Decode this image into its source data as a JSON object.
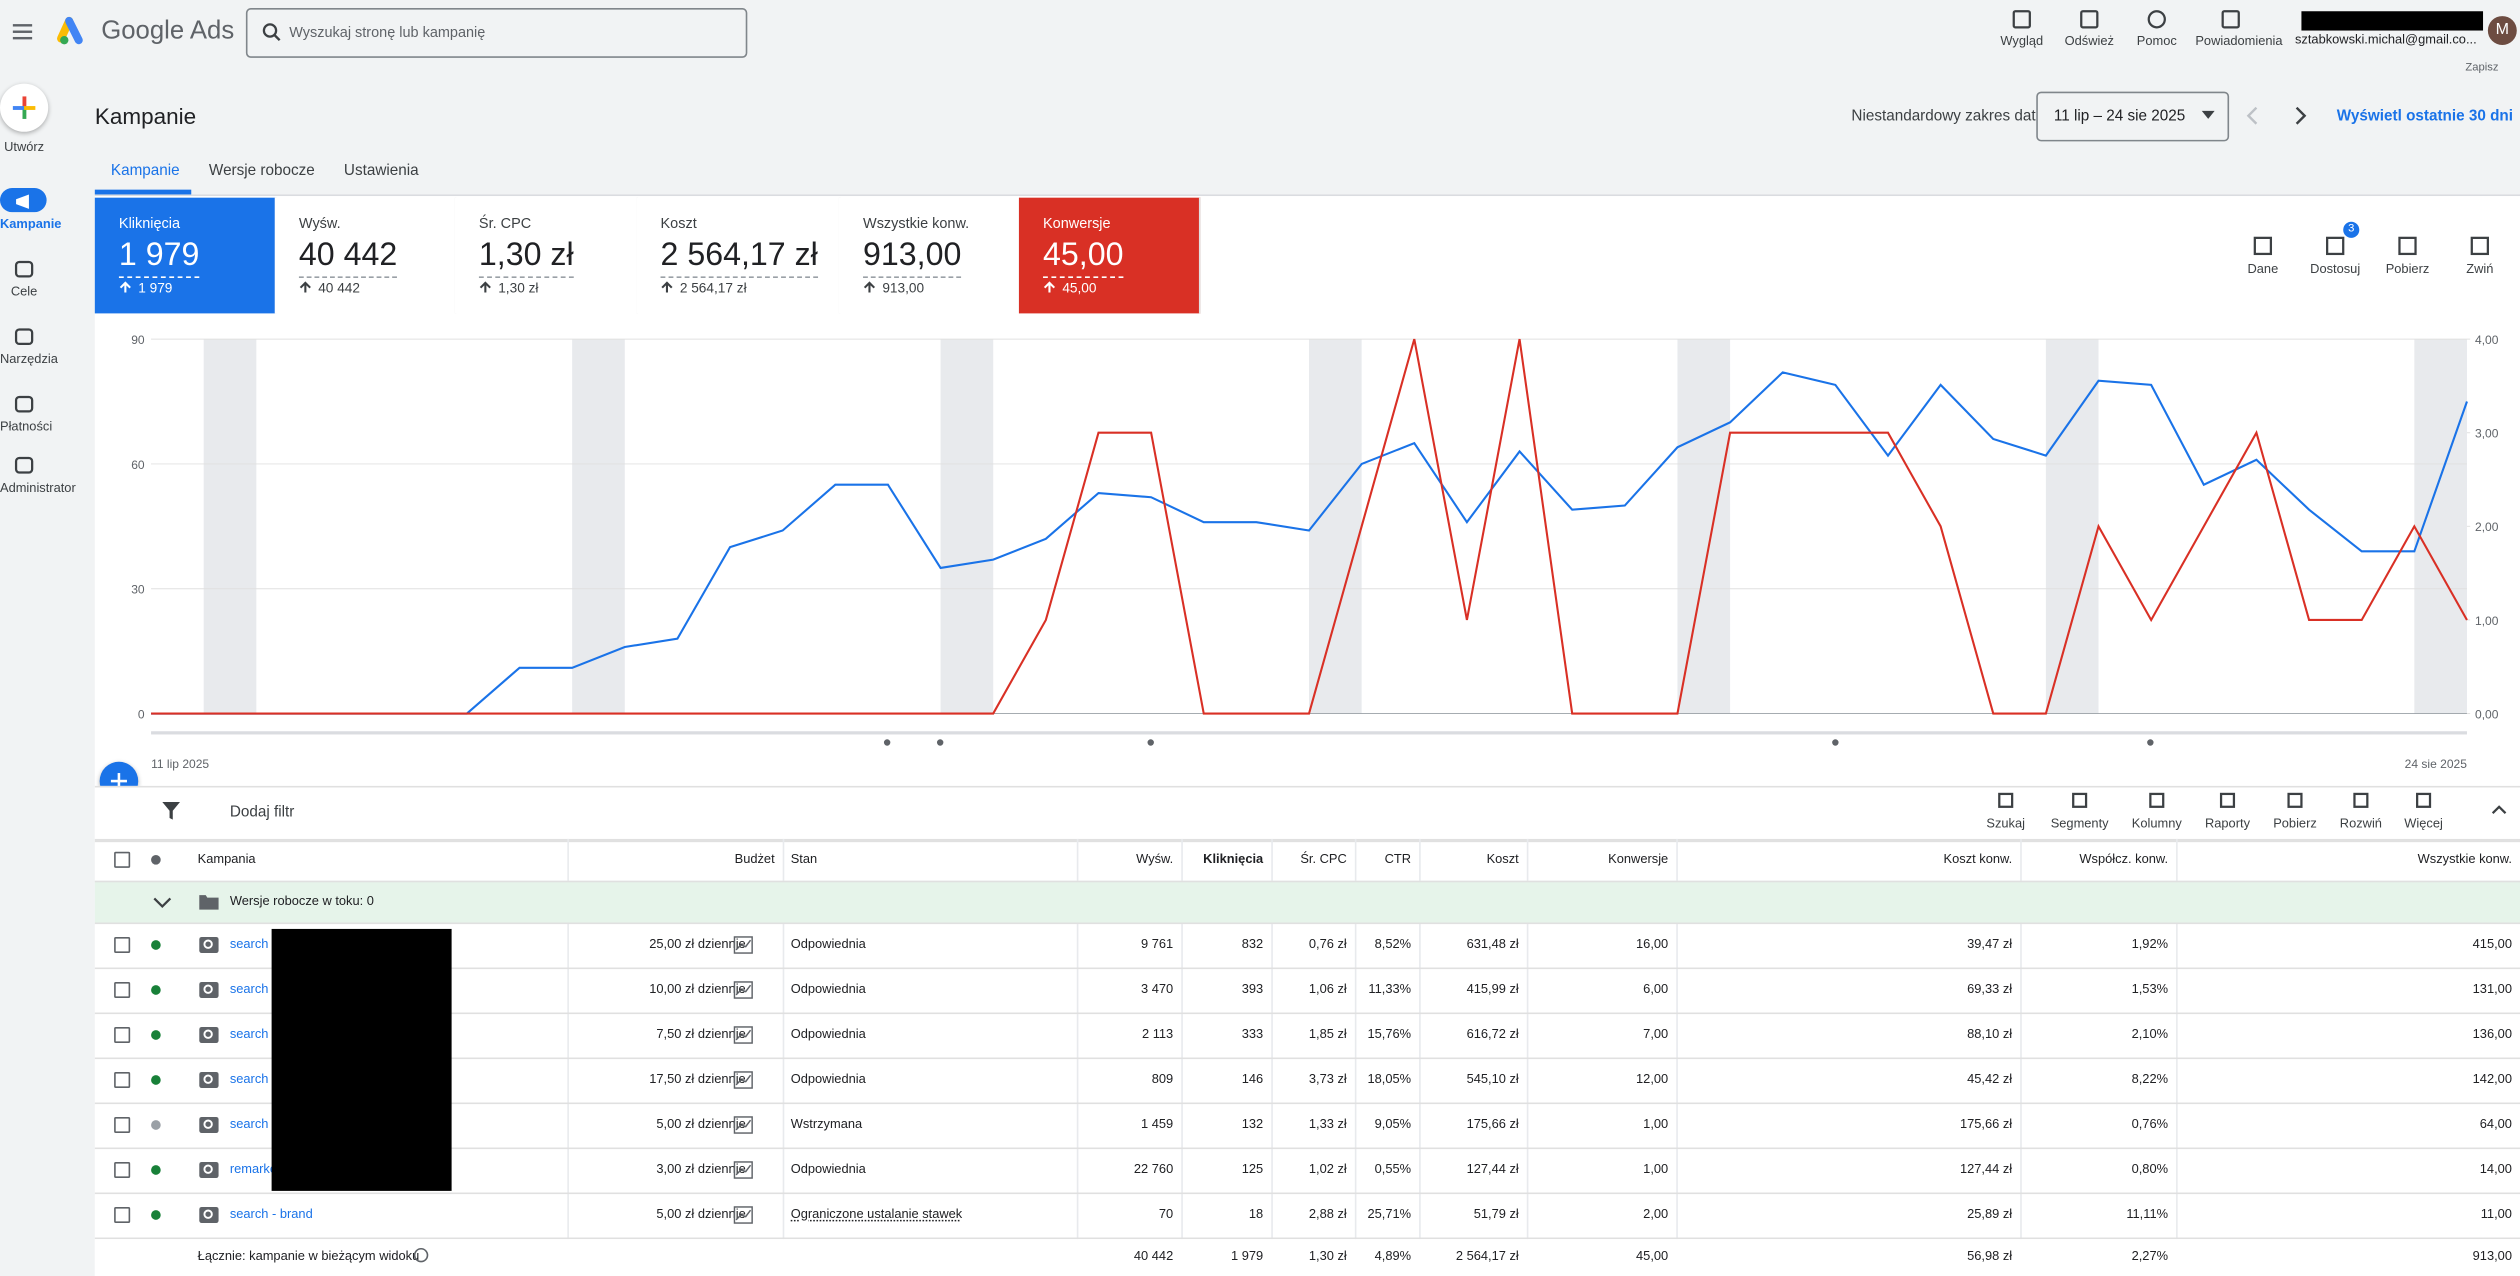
{
  "topbar": {
    "brand": "Google Ads",
    "search_placeholder": "Wyszukaj stronę lub kampanię",
    "actions": [
      "Wygląd",
      "Odśwież",
      "Pomoc",
      "Powiadomienia"
    ],
    "account": "sztabkowski.michal@gmail.co...",
    "avatar": "M",
    "save": "Zapisz"
  },
  "sidebar": [
    "Utwórz",
    "Kampanie",
    "Cele",
    "Narzędzia",
    "Płatności",
    "Administrator"
  ],
  "header": {
    "title": "Kampanie",
    "date_range_label": "Niestandardowy zakres dat",
    "date_range": "11 lip – 24 sie 2025",
    "last_days": "Wyświetl ostatnie 30 dni"
  },
  "tabs": [
    "Kampanie",
    "Wersje robocze",
    "Ustawienia"
  ],
  "metrics": [
    {
      "label": "Kliknięcia",
      "value": "1 979",
      "change": "1 979"
    },
    {
      "label": "Wyśw.",
      "value": "40 442",
      "change": "40 442"
    },
    {
      "label": "Śr. CPC",
      "value": "1,30 zł",
      "change": "1,30 zł"
    },
    {
      "label": "Koszt",
      "value": "2 564,17 zł",
      "change": "2 564,17 zł"
    },
    {
      "label": "Wszystkie konw.",
      "value": "913,00",
      "change": "913,00"
    },
    {
      "label": "Konwersje",
      "value": "45,00",
      "change": "45,00"
    }
  ],
  "chart_tools": [
    "Dane",
    "Dostosuj",
    "Pobierz",
    "Zwiń"
  ],
  "chart_tools_badge": 3,
  "chart_data": {
    "type": "line",
    "categories": [
      "11 lip 2025",
      null,
      null,
      null,
      null,
      null,
      null,
      null,
      null,
      null,
      null,
      null,
      null,
      null,
      null,
      null,
      null,
      null,
      null,
      null,
      null,
      null,
      null,
      null,
      null,
      null,
      null,
      null,
      null,
      null,
      null,
      null,
      null,
      null,
      null,
      null,
      null,
      null,
      null,
      null,
      null,
      null,
      null,
      null,
      "24 sie 2025"
    ],
    "series": [
      {
        "color": "#1a73e8",
        "axis": "y",
        "values": [
          0,
          0,
          0,
          0,
          0,
          0,
          0,
          11,
          11,
          16,
          18,
          40,
          44,
          55,
          55,
          35,
          37,
          42,
          53,
          52,
          46,
          46,
          44,
          60,
          65,
          46,
          63,
          49,
          50,
          64,
          70,
          82,
          79,
          62,
          79,
          66,
          62,
          80,
          79,
          55,
          61,
          49,
          39,
          39,
          75
        ]
      },
      {
        "color": "#d93025",
        "axis": "y2",
        "values": [
          0,
          0,
          0,
          0,
          0,
          0,
          0,
          0,
          0,
          0,
          0,
          0,
          0,
          0,
          0,
          0,
          0,
          1,
          3,
          3,
          0,
          0,
          0,
          2,
          4,
          1,
          4,
          0,
          0,
          0,
          3,
          3,
          3,
          3,
          2,
          0,
          0,
          2,
          1,
          2,
          3,
          1,
          1,
          2,
          1
        ]
      }
    ],
    "ylim": [
      0,
      90
    ],
    "yticks": [
      0,
      30,
      60,
      90
    ],
    "y2lim": [
      0,
      4
    ],
    "y2ticks": [
      {
        "value": 0,
        "label": "0,00"
      },
      {
        "value": 1,
        "label": "1,00"
      },
      {
        "value": 2,
        "label": "2,00"
      },
      {
        "value": 3,
        "label": "3,00"
      },
      {
        "value": 4,
        "label": "4,00"
      }
    ],
    "grid": true
  },
  "filter": "Dodaj filtr",
  "table_tools": [
    "Szukaj",
    "Segmenty",
    "Kolumny",
    "Raporty",
    "Pobierz",
    "Rozwiń",
    "Więcej"
  ],
  "table": {
    "columns": [
      "Kampania",
      "Budżet",
      "Stan",
      "Wyśw.",
      "Kliknięcia",
      "Śr. CPC",
      "CTR",
      "Koszt",
      "Konwersje",
      "Koszt konw.",
      "Współcz. konw.",
      "Wszystkie konw."
    ],
    "drafts": "Wersje robocze w toku: 0",
    "rows": [
      [
        "search",
        "25,00 zł dziennie",
        "Odpowiednia",
        "9 761",
        "832",
        "0,76 zł",
        "8,52%",
        "631,48 zł",
        "16,00",
        "39,47 zł",
        "1,92%",
        "415,00"
      ],
      [
        "search",
        "10,00 zł dziennie",
        "Odpowiednia",
        "3 470",
        "393",
        "1,06 zł",
        "11,33%",
        "415,99 zł",
        "6,00",
        "69,33 zł",
        "1,53%",
        "131,00"
      ],
      [
        "search",
        "7,50 zł dziennie",
        "Odpowiednia",
        "2 113",
        "333",
        "1,85 zł",
        "15,76%",
        "616,72 zł",
        "7,00",
        "88,10 zł",
        "2,10%",
        "136,00"
      ],
      [
        "search",
        "17,50 zł dziennie",
        "Odpowiednia",
        "809",
        "146",
        "3,73 zł",
        "18,05%",
        "545,10 zł",
        "12,00",
        "45,42 zł",
        "8,22%",
        "142,00"
      ],
      [
        "search",
        "5,00 zł dziennie",
        "Wstrzymana",
        "1 459",
        "132",
        "1,33 zł",
        "9,05%",
        "175,66 zł",
        "1,00",
        "175,66 zł",
        "0,76%",
        "64,00"
      ],
      [
        "remarke",
        "3,00 zł dziennie",
        "Odpowiednia",
        "22 760",
        "125",
        "1,02 zł",
        "0,55%",
        "127,44 zł",
        "1,00",
        "127,44 zł",
        "0,80%",
        "14,00"
      ],
      [
        "search - brand",
        "5,00 zł dziennie",
        "Ograniczone ustalanie stawek",
        "70",
        "18",
        "2,88 zł",
        "25,71%",
        "51,79 zł",
        "2,00",
        "25,89 zł",
        "11,11%",
        "11,00"
      ]
    ],
    "total": {
      "label": "Łącznie: kampanie w bieżącym widoku",
      "values": [
        "40 442",
        "1 979",
        "1,30 zł",
        "4,89%",
        "2 564,17 zł",
        "45,00",
        "56,98 zł",
        "2,27%",
        "913,00"
      ]
    }
  }
}
